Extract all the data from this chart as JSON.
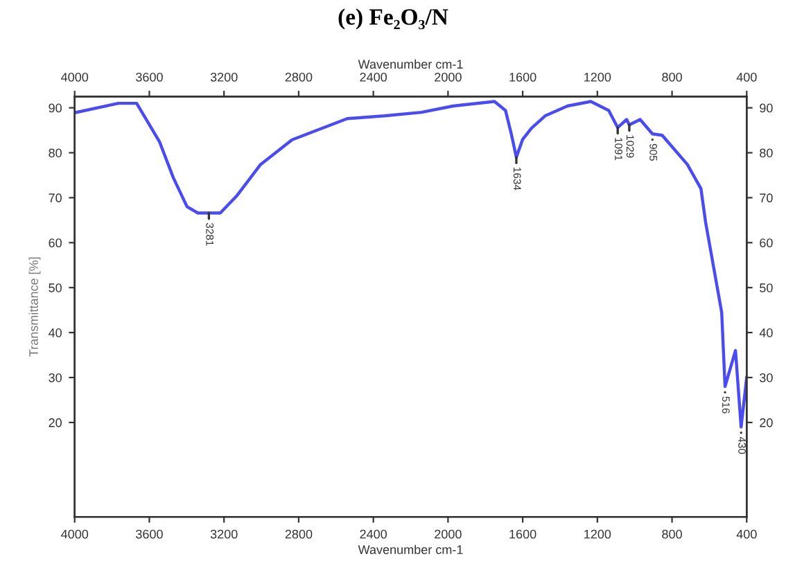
{
  "chart_data": {
    "type": "line",
    "title": "(e) Fe₂O₃/N",
    "xlabel": "Wavenumber cm-1",
    "x2label": "Wavenumber cm-1",
    "ylabel": "Transmittance [%]",
    "xlim": [
      4000,
      400
    ],
    "xticks": [
      4000,
      3600,
      3200,
      2800,
      2400,
      2000,
      1600,
      1200,
      800,
      400
    ],
    "x2lim": [
      4000,
      400
    ],
    "x2ticks": [
      4000,
      3600,
      3200,
      2800,
      2400,
      2000,
      1600,
      1200,
      800,
      400
    ],
    "ylim": [
      -1,
      92.5
    ],
    "yticks": [
      20,
      30,
      40,
      50,
      60,
      70,
      80,
      90
    ],
    "y2lim": [
      -1,
      92.5
    ],
    "y2ticks": [
      20,
      30,
      40,
      50,
      60,
      70,
      80,
      90
    ],
    "grid": false,
    "marker": "none",
    "line_style": "solid",
    "series": [
      {
        "color": "#4b4bf2",
        "x": [
          4000,
          3766,
          3668,
          3545,
          3471,
          3398,
          3340,
          3281,
          3220,
          3130,
          3004,
          2835,
          2540,
          2341,
          2142,
          1972,
          1751,
          1692,
          1660,
          1634,
          1600,
          1554,
          1480,
          1360,
          1235,
          1139,
          1091,
          1043,
          1029,
          971,
          905,
          853,
          718,
          645,
          620,
          534,
          516,
          460,
          430,
          400
        ],
        "values": [
          88.9,
          91,
          91,
          82.4,
          74.4,
          68,
          66.6,
          66.6,
          66.6,
          70.5,
          77.4,
          82.9,
          87.6,
          88.2,
          89,
          90.4,
          91.4,
          89.4,
          84,
          79,
          83,
          85.4,
          88.2,
          90.4,
          91.4,
          89.4,
          85.6,
          87.4,
          86.2,
          87.4,
          84.2,
          83.9,
          77.4,
          72,
          64.5,
          44.5,
          28,
          36,
          19,
          30
        ]
      }
    ],
    "annotations": [
      {
        "text": "3281",
        "x": 3281,
        "y": 66.6
      },
      {
        "text": "1634",
        "x": 1634,
        "y": 79
      },
      {
        "text": "1091",
        "x": 1091,
        "y": 85.6
      },
      {
        "text": "1029",
        "x": 1029,
        "y": 86.2
      },
      {
        "text": "905",
        "x": 905,
        "y": 84.2
      },
      {
        "text": "516",
        "x": 516,
        "y": 28
      },
      {
        "text": "430",
        "x": 430,
        "y": 19
      }
    ]
  }
}
